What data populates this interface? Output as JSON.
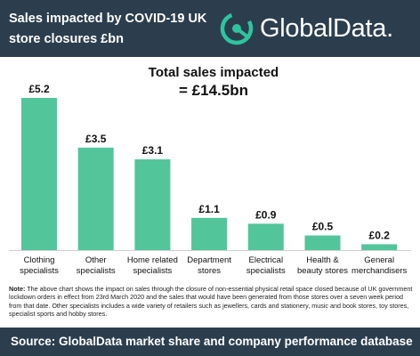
{
  "header": {
    "title_line1": "Sales impacted by COVID-19 UK",
    "title_line2": "store closures £bn",
    "brand": "GlobalData."
  },
  "total": {
    "label": "Total sales impacted",
    "value": "= £14.5bn"
  },
  "colors": {
    "bar": "#52c59a",
    "header_bg": "#2c3e4e",
    "logo_accent": "#2ec4a0"
  },
  "chart_data": {
    "type": "bar",
    "categories": [
      "Clothing specialists",
      "Other specialists",
      "Home related specialists",
      "Department stores",
      "Electrical specialists",
      "Health & beauty stores",
      "General merchandisers"
    ],
    "category_lines": [
      [
        "Clothing",
        "specialists"
      ],
      [
        "Other",
        "specialists"
      ],
      [
        "Home related",
        "specialists"
      ],
      [
        "Department",
        "stores"
      ],
      [
        "Electrical",
        "specialists"
      ],
      [
        "Health &",
        "beauty stores"
      ],
      [
        "General",
        "merchandisers"
      ]
    ],
    "values": [
      5.2,
      3.5,
      3.1,
      1.1,
      0.9,
      0.5,
      0.2
    ],
    "value_labels": [
      "£5.2",
      "£3.5",
      "£3.1",
      "£1.1",
      "£0.9",
      "£0.5",
      "£0.2"
    ],
    "title": "Sales impacted by COVID-19 UK store closures £bn",
    "xlabel": "",
    "ylabel": "",
    "ylim": [
      0,
      5.2
    ],
    "grid": false
  },
  "note": {
    "label": "Note:",
    "text": "The above chart shows the impact on sales through the closure of non-essential physical retail space closed because of UK government lockdown orders in effect from 23rd March 2020 and the sales that would have been generated from those stores over a seven week period from that date. Other specialists includes a wide variety of retailers such as jewellers, cards and stationery, music and book stores, toy stores, specialist sports and hobby stores."
  },
  "footer": {
    "source": "Source:  GlobalData market share and company performance database"
  }
}
